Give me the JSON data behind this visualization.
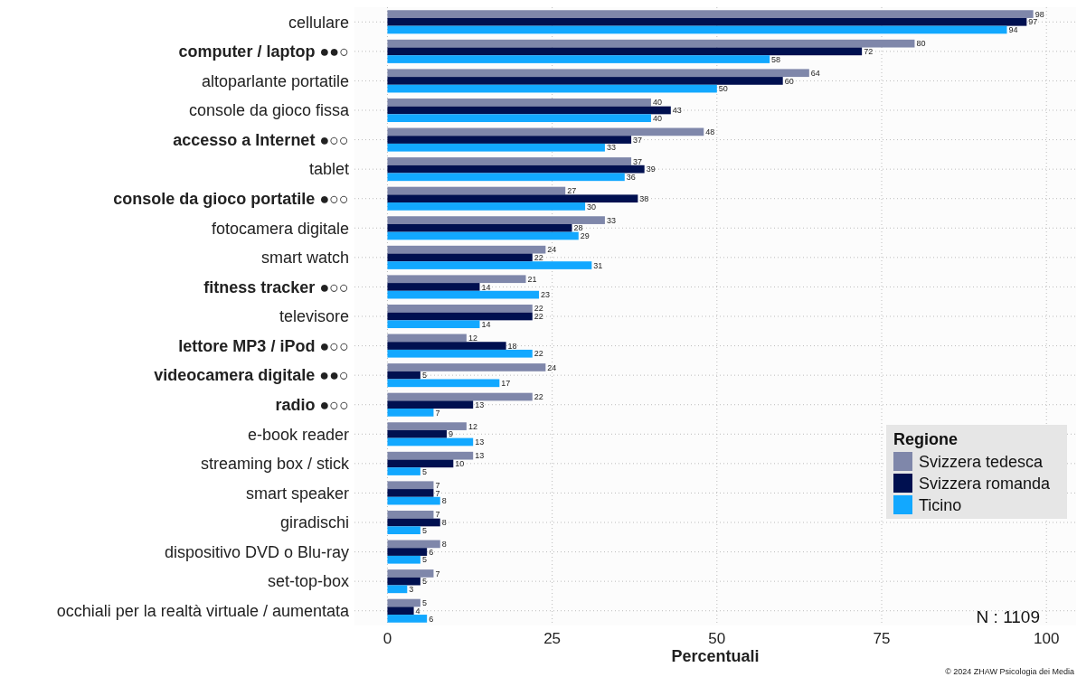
{
  "chart_data": {
    "type": "bar",
    "orientation": "horizontal",
    "categories": [
      "cellulare",
      "computer / laptop ●●○",
      "altoparlante portatile",
      "console da gioco fissa",
      "accesso a Internet ●○○",
      "tablet",
      "console da gioco portatile ●○○",
      "fotocamera digitale",
      "smart watch",
      "fitness tracker ●○○",
      "televisore",
      "lettore MP3 / iPod ●○○",
      "videocamera digitale ●●○",
      "radio ●○○",
      "e-book reader",
      "streaming box / stick",
      "smart speaker",
      "giradischi",
      "dispositivo DVD o Blu-ray",
      "set-top-box",
      "occhiali per la realtà virtuale / aumentata"
    ],
    "series": [
      {
        "name": "Svizzera tedesca",
        "color": "#7f87aa",
        "values": [
          98,
          80,
          64,
          40,
          48,
          37,
          27,
          33,
          24,
          21,
          22,
          12,
          24,
          22,
          12,
          13,
          7,
          7,
          8,
          7,
          5
        ]
      },
      {
        "name": "Svizzera romanda",
        "color": "#001050",
        "values": [
          97,
          72,
          60,
          43,
          37,
          39,
          38,
          28,
          22,
          14,
          22,
          18,
          5,
          13,
          9,
          10,
          7,
          8,
          6,
          5,
          4
        ]
      },
      {
        "name": "Ticino",
        "color": "#12a8ff",
        "values": [
          94,
          58,
          50,
          40,
          33,
          36,
          30,
          29,
          31,
          23,
          14,
          22,
          17,
          7,
          13,
          5,
          8,
          5,
          5,
          3,
          6
        ]
      }
    ],
    "xlabel": "Percentuali",
    "legend_title": "Regione",
    "legend": "bottom right",
    "xlim": [
      -5,
      104.5
    ],
    "xticks": [
      0,
      25,
      50,
      75,
      100
    ],
    "grid": true,
    "data_labels": true,
    "annotations": [
      "N : 1109",
      "© 2024 ZHAW Psicologia dei Media"
    ]
  }
}
